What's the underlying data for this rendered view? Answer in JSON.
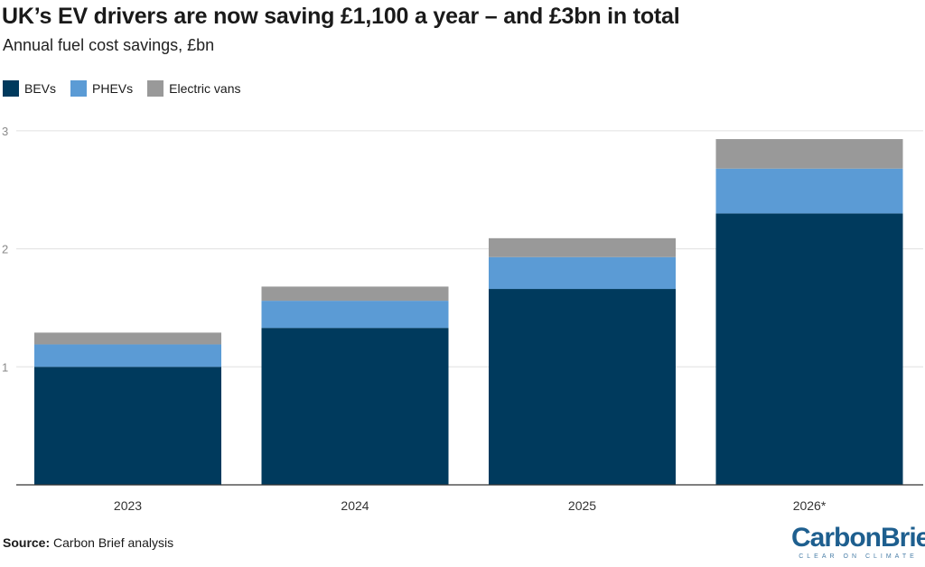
{
  "header": {
    "title": "UK’s EV drivers are now saving £1,100 a year – and £3bn in total",
    "subtitle": "Annual fuel cost savings, £bn"
  },
  "legend": [
    {
      "label": "BEVs",
      "color": "#003a5d"
    },
    {
      "label": "PHEVs",
      "color": "#5b9bd5"
    },
    {
      "label": "Electric vans",
      "color": "#999999"
    }
  ],
  "footer": {
    "source_label": "Source:",
    "source_text": "Carbon Brief analysis"
  },
  "logo": {
    "name": "CarbonBrief",
    "tagline": "CLEAR ON CLIMATE"
  },
  "chart_data": {
    "type": "bar",
    "stacked": true,
    "categories": [
      "2023",
      "2024",
      "2025",
      "2026*"
    ],
    "series": [
      {
        "name": "BEVs",
        "color": "#003a5d",
        "values": [
          1.0,
          1.33,
          1.66,
          2.3
        ]
      },
      {
        "name": "PHEVs",
        "color": "#5b9bd5",
        "values": [
          0.19,
          0.23,
          0.27,
          0.38
        ]
      },
      {
        "name": "Electric vans",
        "color": "#999999",
        "values": [
          0.1,
          0.12,
          0.16,
          0.25
        ]
      }
    ],
    "ylim": [
      0,
      3
    ],
    "yticks": [
      1,
      2,
      3
    ],
    "grid": true,
    "legend_position": "top-left"
  }
}
